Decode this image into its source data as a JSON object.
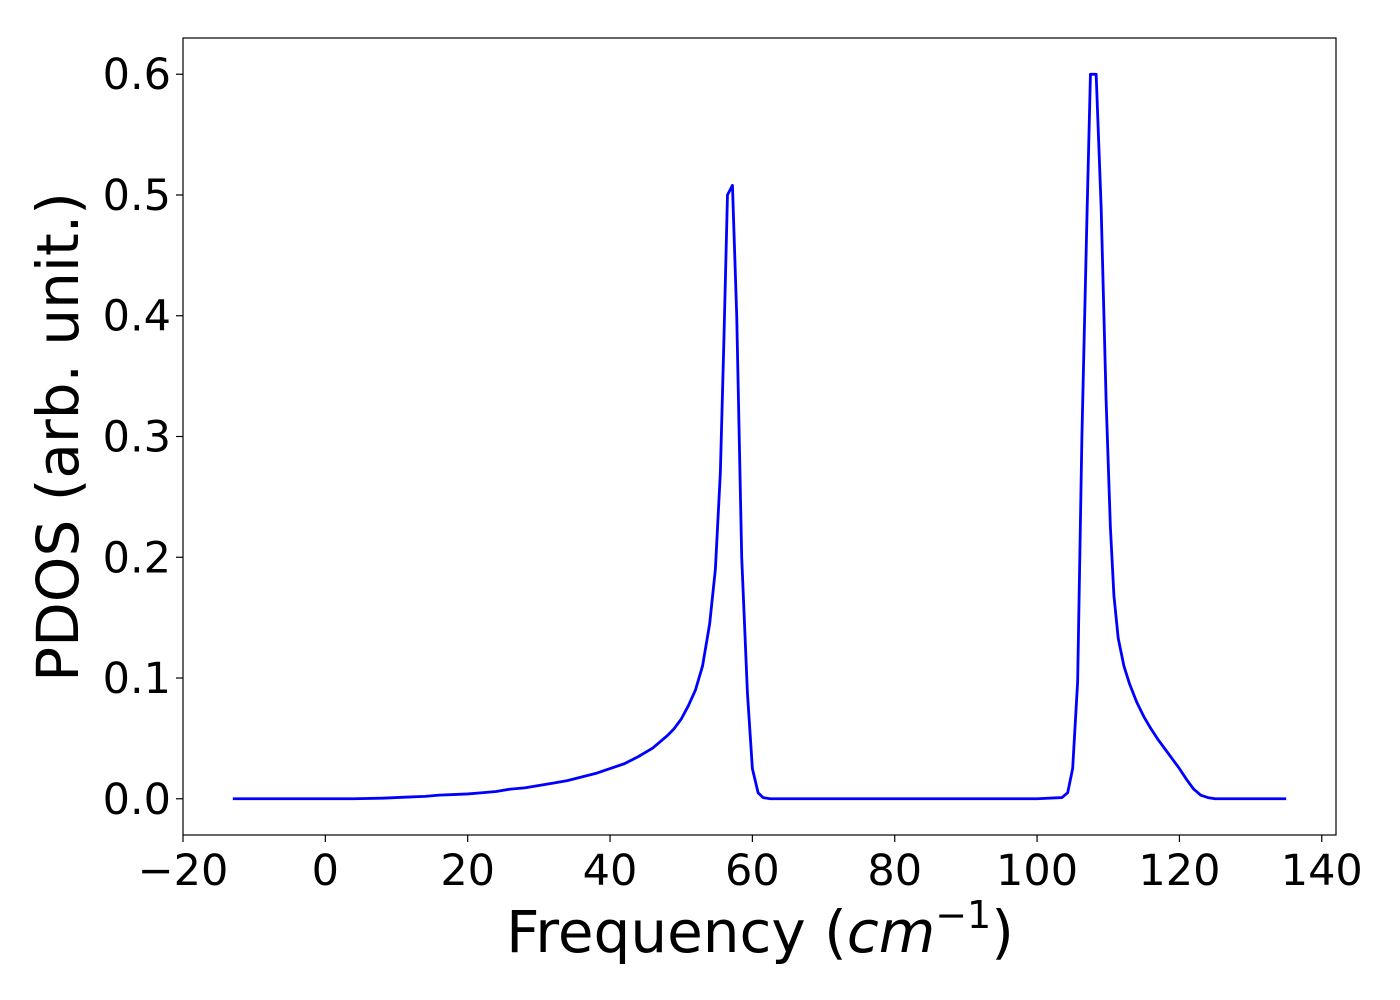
{
  "chart_data": {
    "type": "line",
    "title": "",
    "xlabel_prefix": "Frequency (",
    "xlabel_unit": "cm",
    "xlabel_exp": "−1",
    "xlabel_suffix": ")",
    "ylabel": "PDOS (arb. unit.)",
    "xlim": [
      -20,
      142
    ],
    "ylim": [
      -0.03,
      0.63
    ],
    "xticks": [
      -20,
      0,
      20,
      40,
      60,
      80,
      100,
      120,
      140
    ],
    "xtick_labels": [
      "−20",
      "0",
      "20",
      "40",
      "60",
      "80",
      "100",
      "120",
      "140"
    ],
    "yticks": [
      0.0,
      0.1,
      0.2,
      0.3,
      0.4,
      0.5,
      0.6
    ],
    "ytick_labels": [
      "0.0",
      "0.1",
      "0.2",
      "0.3",
      "0.4",
      "0.5",
      "0.6"
    ],
    "grid": false,
    "legend": "none",
    "series": [
      {
        "color": "#0000ff",
        "x": [
          -13,
          0,
          4,
          8,
          10,
          12,
          14,
          16,
          18,
          20,
          22,
          24,
          26,
          28,
          30,
          32,
          34,
          36,
          38,
          40,
          42,
          44,
          46,
          48,
          49,
          50,
          51,
          52,
          53,
          54,
          54.8,
          55.5,
          56,
          56.5,
          57.2,
          57.8,
          58.5,
          59.3,
          60,
          60.8,
          61.5,
          62.5,
          64,
          70,
          80,
          90,
          100,
          103.5,
          104.3,
          105,
          105.7,
          106.3,
          107,
          107.5,
          108.3,
          109,
          109.7,
          110.3,
          110.8,
          111.4,
          112.2,
          113,
          114,
          115,
          116,
          117,
          118,
          119,
          120,
          121,
          122,
          123,
          124,
          125,
          126,
          128,
          135
        ],
        "y": [
          0.0,
          0.0,
          0.0,
          0.0005,
          0.001,
          0.0015,
          0.002,
          0.003,
          0.0035,
          0.004,
          0.005,
          0.006,
          0.008,
          0.009,
          0.011,
          0.013,
          0.015,
          0.018,
          0.021,
          0.025,
          0.029,
          0.035,
          0.042,
          0.052,
          0.058,
          0.066,
          0.077,
          0.09,
          0.11,
          0.145,
          0.19,
          0.27,
          0.38,
          0.5,
          0.508,
          0.4,
          0.2,
          0.088,
          0.025,
          0.005,
          0.001,
          0.0,
          0.0,
          0.0,
          0.0,
          0.0,
          0.0,
          0.001,
          0.005,
          0.025,
          0.097,
          0.3,
          0.48,
          0.6,
          0.6,
          0.49,
          0.33,
          0.225,
          0.168,
          0.133,
          0.11,
          0.095,
          0.08,
          0.068,
          0.058,
          0.049,
          0.041,
          0.033,
          0.025,
          0.016,
          0.008,
          0.003,
          0.001,
          0.0,
          0.0,
          0.0,
          0.0
        ]
      }
    ]
  }
}
